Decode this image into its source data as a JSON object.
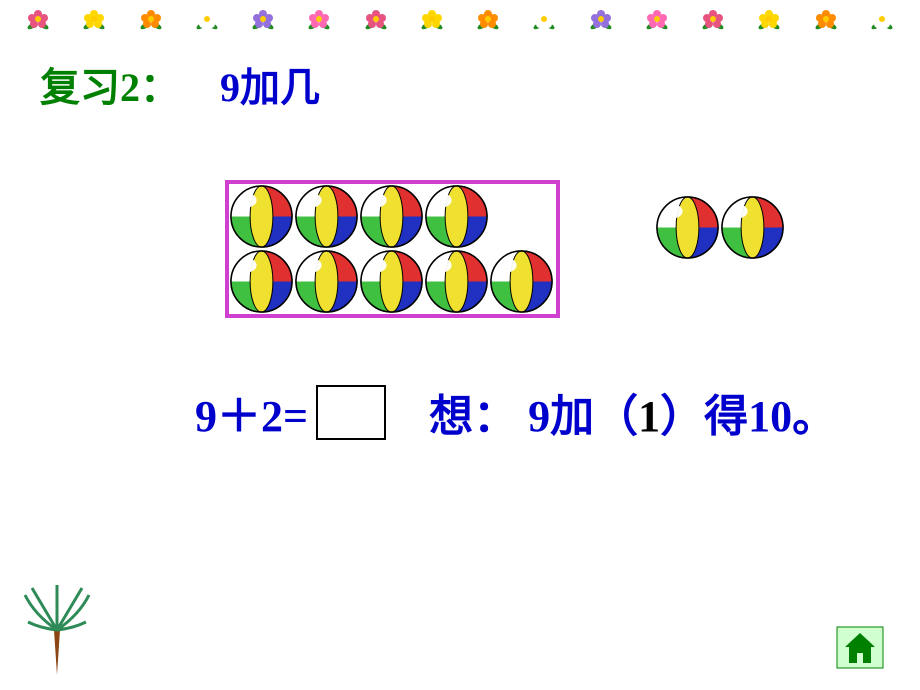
{
  "title": {
    "prefix": "复习2：",
    "main": "9加几",
    "prefix_color": "#008000",
    "main_color": "#0000cd",
    "fontsize": 40
  },
  "flower_border": {
    "count": 16,
    "colors": [
      "#e75480",
      "#ffd700",
      "#ff8c00",
      "#ffffff",
      "#9370db",
      "#ff69b4"
    ],
    "leaf_color": "#228b22"
  },
  "balls": {
    "frame": {
      "border_color": "#d040d0",
      "border_width": 4,
      "rows": [
        4,
        5
      ]
    },
    "extra_count": 2,
    "ball_colors": {
      "top": "#ffffff",
      "right": "#e03030",
      "bottom": "#2030c0",
      "left": "#40c040",
      "center": "#f0e030"
    },
    "ball_size": 65
  },
  "equation": {
    "left": "9＋2=",
    "think_label": "想：",
    "think_before": "9加（",
    "think_answer": "1",
    "think_after": "）得10。",
    "text_color": "#0000cd",
    "answer_color": "#000000",
    "fontsize": 44
  },
  "decorations": {
    "palm_trunk_color": "#8b4513",
    "palm_leaf_color": "#2e8b57",
    "home_icon_color": "#008000",
    "home_bg_color": "#d0ffd0"
  }
}
